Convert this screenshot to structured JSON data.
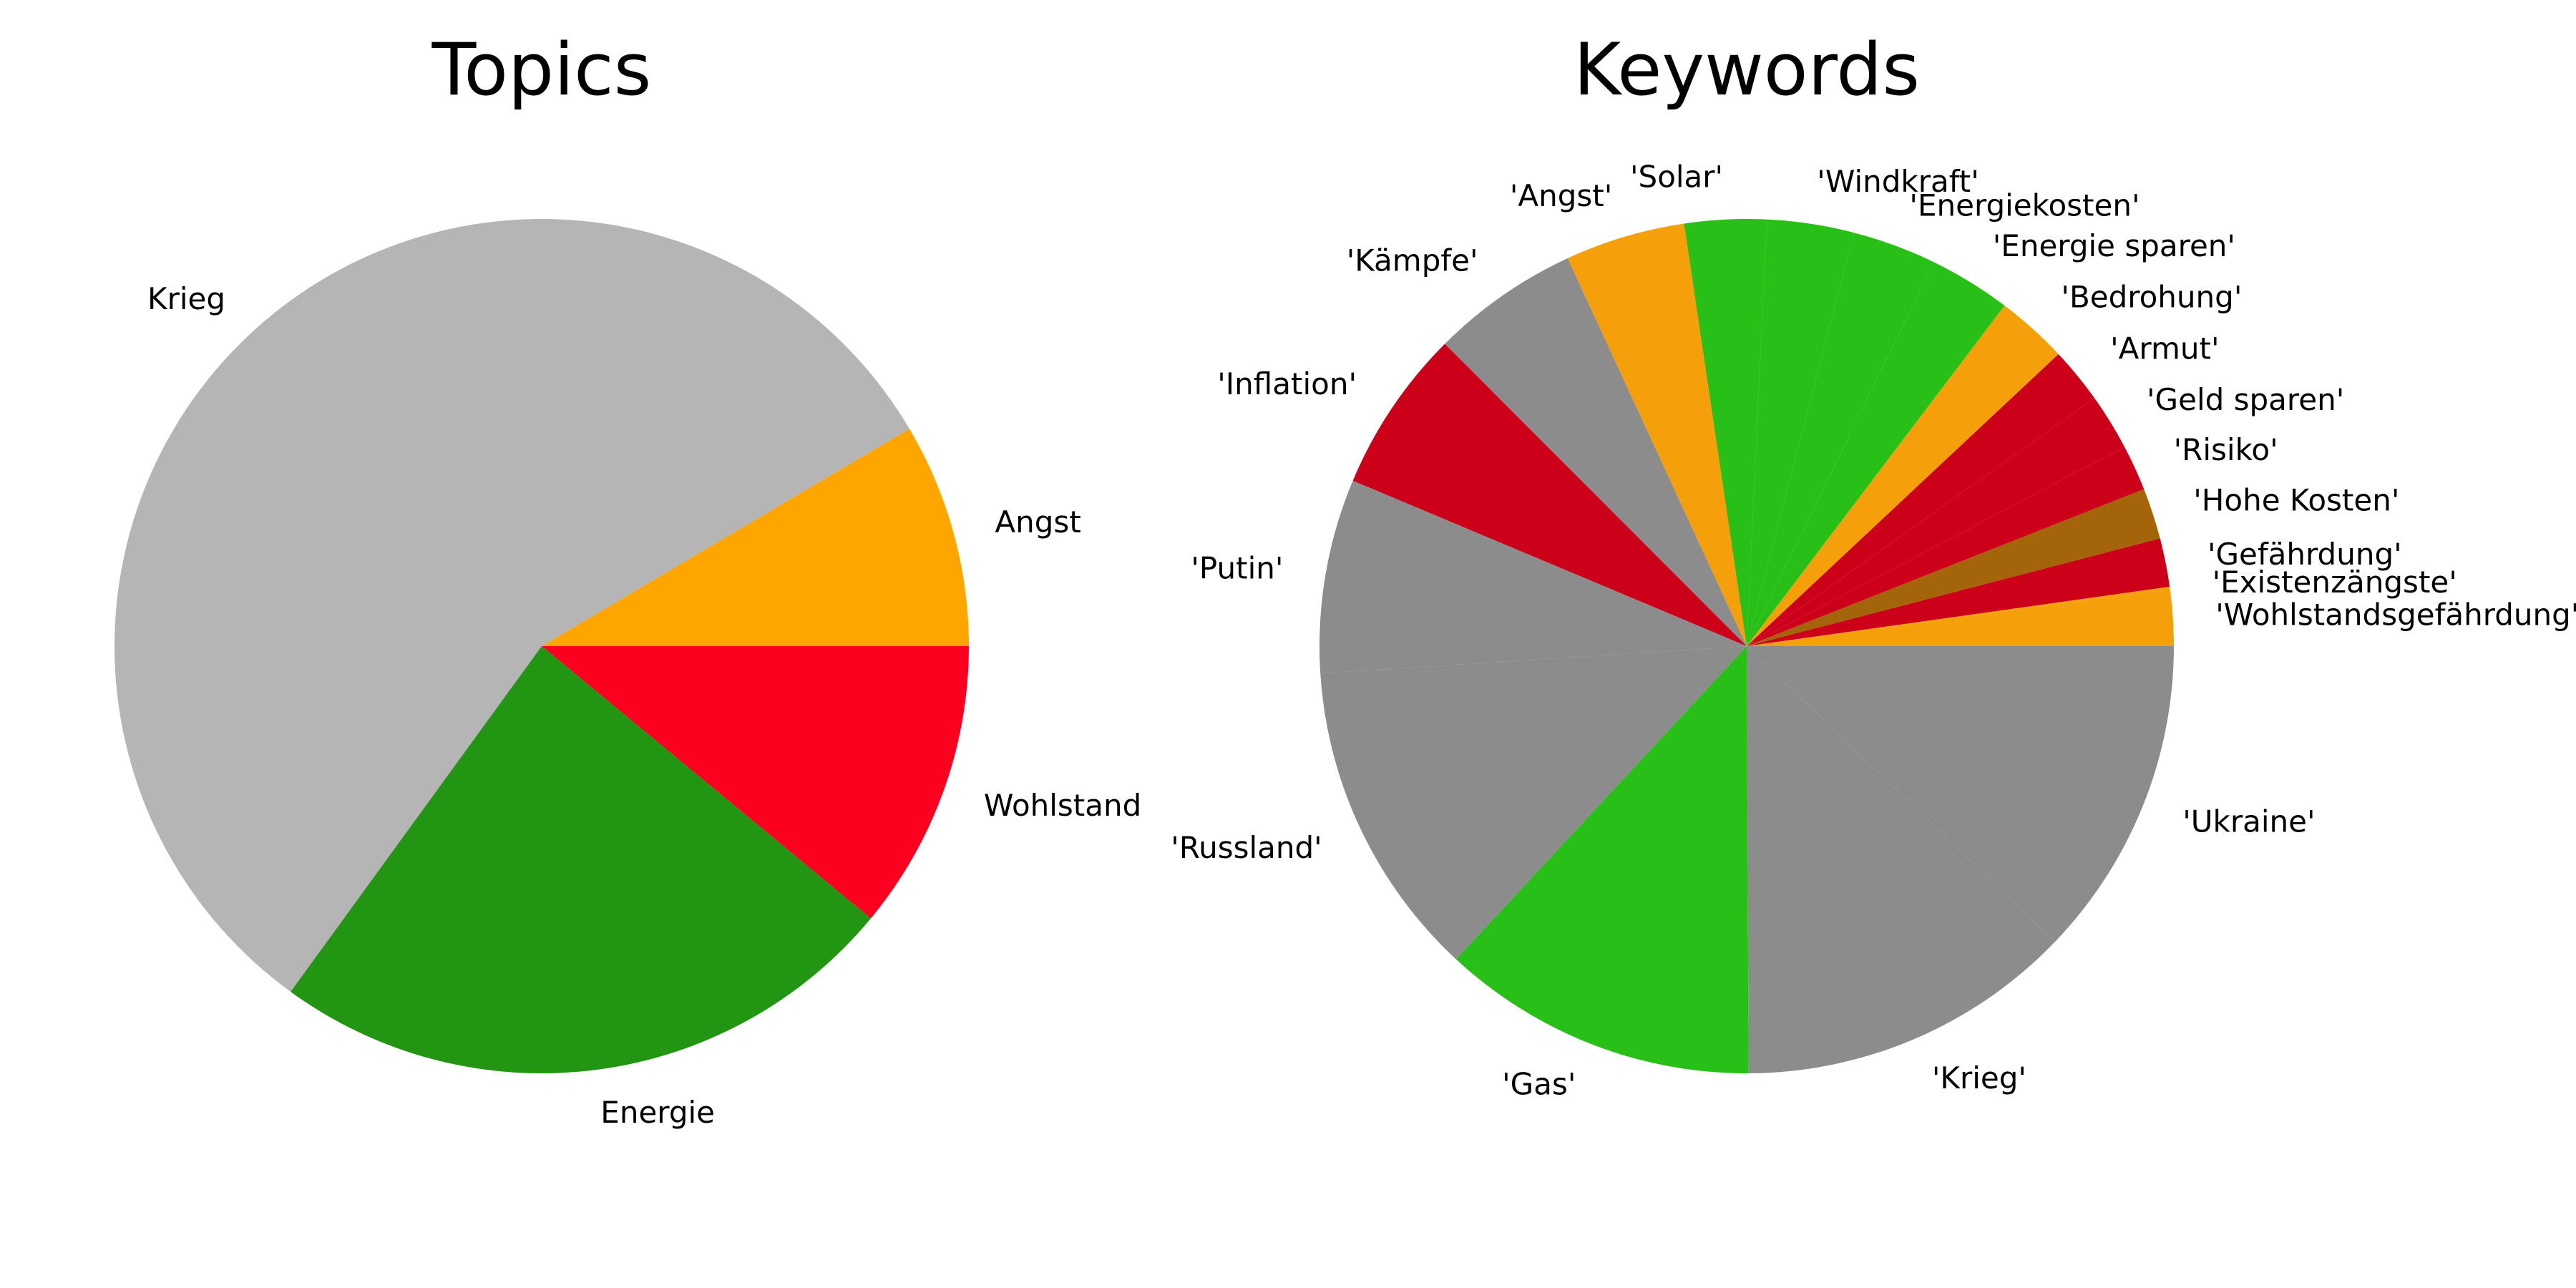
{
  "chart_data": [
    {
      "type": "pie",
      "title": "Topics",
      "labels": [
        "Angst",
        "Krieg",
        "Energie",
        "Wohlstand"
      ],
      "values": [
        8.5,
        56.5,
        24.0,
        11.0
      ],
      "colors": [
        "#ffa500",
        "#b5b5b5",
        "#229612",
        "#fc0020"
      ]
    },
    {
      "type": "pie",
      "title": "Keywords",
      "labels": [
        "'Wohlstandsgefährdung'",
        "'Existenzängste'",
        "'Gefährdung'",
        "'Hohe Kosten'",
        "'Risiko'",
        "'Geld sparen'",
        "'Armut'",
        "'Bedrohung'",
        "'Energie sparen'",
        "'Energiekosten'",
        "'Windkraft'",
        "'Solar'",
        "'Angst'",
        "'Kämpfe'",
        "'Inflation'",
        "'Putin'",
        "'Russland'",
        "'Gas'",
        "'Krieg'",
        "'Ukraine'"
      ],
      "values": [
        2.2,
        0.1,
        1.9,
        2.0,
        1.8,
        2.2,
        2.2,
        2.8,
        3.2,
        3.3,
        3.4,
        3.2,
        4.7,
        5.8,
        6.4,
        7.6,
        12.5,
        12.4,
        13.2,
        12.6
      ],
      "colors": [
        "#f59f0a",
        "#f59f0a",
        "#cd001a",
        "#a4640a",
        "#cd001a",
        "#cd001a",
        "#cd001a",
        "#f59f0a",
        "#28c016",
        "#28c016",
        "#28c016",
        "#28c016",
        "#f59f0a",
        "#8c8c8c",
        "#cd001a",
        "#8c8c8c",
        "#8c8c8c",
        "#28c016",
        "#8c8c8c",
        "#8c8c8c"
      ]
    }
  ]
}
